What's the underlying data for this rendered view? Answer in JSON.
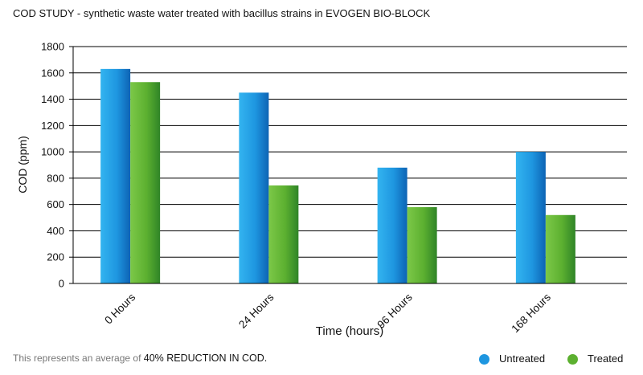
{
  "chart_data": {
    "type": "bar",
    "title": "COD STUDY - synthetic waste water treated with bacillus strains in EVOGEN BIO-BLOCK",
    "xlabel": "Time (hours)",
    "ylabel": "COD (ppm)",
    "categories": [
      "0 Hours",
      "24 Hours",
      "96 Hours",
      "168 Hours"
    ],
    "series": [
      {
        "name": "Untreated",
        "values": [
          1630,
          1450,
          880,
          1000
        ],
        "color": "#1e96e0"
      },
      {
        "name": "Treated",
        "values": [
          1530,
          745,
          580,
          520
        ],
        "color": "#5cb030"
      }
    ],
    "ylim": [
      0,
      1800
    ],
    "yticks": [
      0,
      200,
      400,
      600,
      800,
      1000,
      1200,
      1400,
      1600,
      1800
    ],
    "grid": true,
    "legend_position": "bottom-right"
  },
  "footnote": {
    "prefix": "This represents an average of ",
    "highlight": "40% REDUCTION IN COD."
  }
}
